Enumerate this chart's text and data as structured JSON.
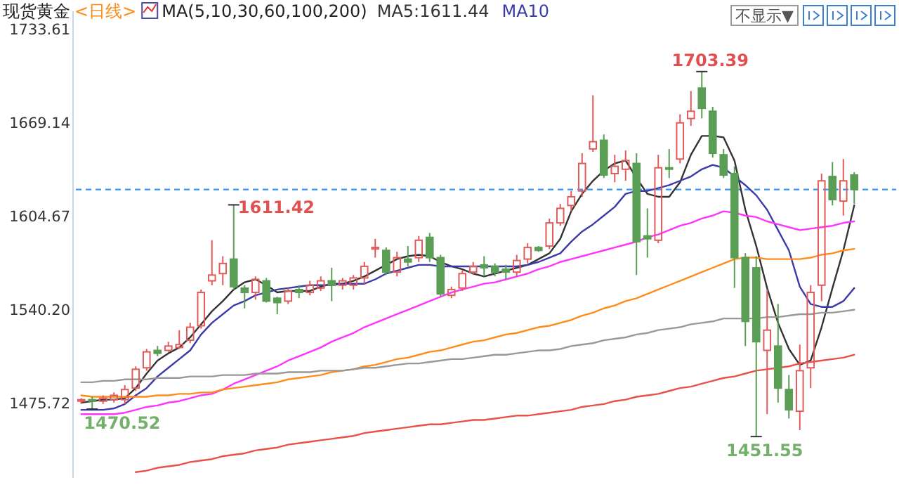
{
  "chart_data": {
    "type": "candlestick",
    "title": "现货黄金",
    "subtitle": "<日线>",
    "legend_title": "MA(5,10,30,60,100,200)",
    "legend": "top left",
    "categories": [
      null,
      null,
      null,
      null,
      null,
      null,
      null,
      null,
      null,
      null,
      null,
      null,
      null,
      null,
      null,
      null,
      null,
      null,
      null,
      null,
      null,
      null,
      null,
      null,
      null,
      null,
      null,
      null,
      null,
      null,
      null,
      null,
      null,
      null,
      null,
      null,
      null,
      null,
      null,
      null,
      null,
      null,
      null,
      null,
      null,
      null,
      null,
      null,
      null,
      null,
      null,
      null,
      null,
      null,
      null,
      null,
      null,
      null,
      null,
      null,
      null,
      null,
      null,
      null,
      null,
      null,
      null,
      null,
      null,
      null,
      null,
      null
    ],
    "ohlc": [
      [
        1476,
        1478,
        1474,
        1477
      ],
      [
        1477,
        1479,
        1470.52,
        1476
      ],
      [
        1476,
        1480,
        1474,
        1478
      ],
      [
        1477,
        1482,
        1475,
        1480
      ],
      [
        1477,
        1487,
        1474,
        1484
      ],
      [
        1485,
        1500,
        1483,
        1498
      ],
      [
        1499,
        1512,
        1497,
        1510
      ],
      [
        1511,
        1514,
        1507,
        1509
      ],
      [
        1511,
        1517,
        1510,
        1514
      ],
      [
        1513,
        1525,
        1512,
        1515
      ],
      [
        1518,
        1530,
        1516,
        1527
      ],
      [
        1528,
        1553,
        1526,
        1551
      ],
      [
        1559,
        1587,
        1556,
        1563
      ],
      [
        1564,
        1576,
        1556,
        1571
      ],
      [
        1574,
        1611.42,
        1553,
        1555
      ],
      [
        1554,
        1556,
        1540,
        1551
      ],
      [
        1551,
        1562,
        1546,
        1560
      ],
      [
        1559,
        1561,
        1544,
        1545
      ],
      [
        1547,
        1548,
        1536,
        1544
      ],
      [
        1545,
        1554,
        1543,
        1552
      ],
      [
        1553,
        1556,
        1547,
        1551
      ],
      [
        1551,
        1559,
        1549,
        1556
      ],
      [
        1554,
        1562,
        1552,
        1559
      ],
      [
        1559,
        1568,
        1545,
        1556
      ],
      [
        1556,
        1561,
        1553,
        1559
      ],
      [
        1556,
        1563,
        1553,
        1561
      ],
      [
        1561,
        1572,
        1557,
        1569
      ],
      [
        1581,
        1588,
        1575,
        1582
      ],
      [
        1580,
        1582,
        1563,
        1565
      ],
      [
        1565,
        1579,
        1562,
        1575
      ],
      [
        1574,
        1583,
        1569,
        1572
      ],
      [
        1575,
        1590,
        1572,
        1587
      ],
      [
        1589,
        1592,
        1572,
        1575
      ],
      [
        1575,
        1577,
        1548,
        1550
      ],
      [
        1549,
        1555,
        1547,
        1553
      ],
      [
        1554,
        1566,
        1552,
        1564
      ],
      [
        1565,
        1572,
        1563,
        1569
      ],
      [
        1570,
        1576,
        1562,
        1568
      ],
      [
        1569,
        1571,
        1562,
        1565
      ],
      [
        1567,
        1570,
        1560,
        1565
      ],
      [
        1565,
        1577,
        1562,
        1573
      ],
      [
        1574,
        1585,
        1571,
        1582
      ],
      [
        1582,
        1583,
        1579,
        1580
      ],
      [
        1583,
        1602,
        1581,
        1599
      ],
      [
        1599,
        1612,
        1597,
        1609
      ],
      [
        1611,
        1621,
        1607,
        1617
      ],
      [
        1621,
        1647,
        1617,
        1640
      ],
      [
        1650,
        1687,
        1648,
        1655
      ],
      [
        1656,
        1660,
        1630,
        1632
      ],
      [
        1633,
        1646,
        1627,
        1638
      ],
      [
        1636,
        1649,
        1628,
        1642
      ],
      [
        1640,
        1647,
        1563,
        1586
      ],
      [
        1590,
        1609,
        1575,
        1588
      ],
      [
        1587,
        1646,
        1585,
        1637
      ],
      [
        1637,
        1650,
        1630,
        1636
      ],
      [
        1643,
        1674,
        1640,
        1668
      ],
      [
        1671,
        1690,
        1666,
        1676
      ],
      [
        1692,
        1703.39,
        1671,
        1678
      ],
      [
        1676,
        1679,
        1644,
        1647
      ],
      [
        1646,
        1650,
        1630,
        1632
      ],
      [
        1633,
        1638,
        1554,
        1575
      ],
      [
        1575,
        1578,
        1514,
        1531
      ],
      [
        1568,
        1576,
        1451.55,
        1517
      ],
      [
        1511,
        1553,
        1467,
        1525
      ],
      [
        1514,
        1543,
        1475,
        1485
      ],
      [
        1484,
        1494,
        1464,
        1470
      ],
      [
        1469,
        1515,
        1456,
        1497
      ],
      [
        1499,
        1556,
        1485,
        1551
      ],
      [
        1556,
        1633,
        1545,
        1628
      ],
      [
        1631,
        1641,
        1611,
        1615
      ],
      [
        1614,
        1643,
        1604,
        1628
      ],
      [
        1632,
        1634,
        1612,
        1622
      ]
    ],
    "series": [
      {
        "name": "MA5:1611.44",
        "type": "line",
        "color": "#333333",
        "values": [
          1475,
          1476,
          1477,
          1477,
          1478,
          1485,
          1495,
          1504,
          1509,
          1513,
          1520,
          1529,
          1538,
          1545,
          1553,
          1558,
          1560,
          1556,
          1551,
          1552,
          1552,
          1552,
          1555,
          1557,
          1557,
          1559,
          1562,
          1566,
          1570,
          1574,
          1576,
          1577,
          1576,
          1572,
          1569,
          1567,
          1564,
          1562,
          1564,
          1566,
          1568,
          1570,
          1574,
          1578,
          1588,
          1607,
          1619,
          1628,
          1635,
          1640,
          1642,
          1630,
          1619,
          1617,
          1617,
          1627,
          1646,
          1659,
          1659,
          1658,
          1642,
          1608,
          1583,
          1554,
          1530,
          1512,
          1501,
          1504,
          1527,
          1554,
          1580,
          1611
        ]
      },
      {
        "name": "MA10",
        "type": "line",
        "color": "#3a3aa8",
        "values": [
          1470,
          1470,
          1470,
          1471,
          1474,
          1480,
          1485,
          1493,
          1499,
          1505,
          1511,
          1522,
          1530,
          1536,
          1542,
          1545,
          1549,
          1551,
          1553,
          1554,
          1555,
          1556,
          1556,
          1556,
          1557,
          1557,
          1557,
          1560,
          1564,
          1566,
          1568,
          1570,
          1570,
          1569,
          1569,
          1569,
          1569,
          1569,
          1569,
          1569,
          1569,
          1570,
          1572,
          1575,
          1578,
          1586,
          1593,
          1598,
          1604,
          1610,
          1619,
          1621,
          1621,
          1623,
          1625,
          1628,
          1631,
          1636,
          1639,
          1637,
          1631,
          1625,
          1618,
          1608,
          1594,
          1580,
          1555,
          1543,
          1541,
          1541,
          1545,
          1554
        ]
      },
      {
        "type": "line",
        "color": "#ff33ff",
        "values": [
          1467,
          1467,
          1467,
          1467,
          1468,
          1470,
          1472,
          1473,
          1475,
          1476,
          1478,
          1480,
          1481,
          1484,
          1488,
          1491,
          1494,
          1497,
          1500,
          1504,
          1507,
          1510,
          1513,
          1517,
          1520,
          1523,
          1527,
          1530,
          1533,
          1536,
          1539,
          1542,
          1545,
          1548,
          1551,
          1553,
          1555,
          1557,
          1558,
          1560,
          1562,
          1564,
          1567,
          1569,
          1572,
          1574,
          1576,
          1578,
          1580,
          1582,
          1584,
          1586,
          1589,
          1591,
          1594,
          1597,
          1599,
          1602,
          1604,
          1607,
          1606,
          1604,
          1603,
          1600,
          1598,
          1596,
          1594,
          1595,
          1596,
          1597,
          1599,
          1600
        ]
      },
      {
        "type": "line",
        "color": "#ff8c1a",
        "values": [
          1480,
          1479,
          1479,
          1479,
          1479,
          1479,
          1479,
          1480,
          1480,
          1481,
          1481,
          1482,
          1482,
          1484,
          1485,
          1486,
          1487,
          1488,
          1489,
          1491,
          1492,
          1493,
          1494,
          1496,
          1497,
          1498,
          1500,
          1501,
          1503,
          1505,
          1506,
          1508,
          1510,
          1511,
          1513,
          1515,
          1517,
          1518,
          1520,
          1522,
          1523,
          1525,
          1527,
          1528,
          1530,
          1532,
          1535,
          1537,
          1540,
          1542,
          1545,
          1547,
          1550,
          1553,
          1556,
          1559,
          1562,
          1565,
          1568,
          1571,
          1574,
          1575,
          1575,
          1574,
          1574,
          1574,
          1574,
          1575,
          1577,
          1578,
          1580,
          1581
        ]
      },
      {
        "type": "line",
        "color": "#999999",
        "values": [
          1489,
          1489,
          1490,
          1490,
          1491,
          1491,
          1491,
          1492,
          1492,
          1492,
          1493,
          1493,
          1493,
          1494,
          1494,
          1494,
          1495,
          1495,
          1495,
          1496,
          1496,
          1496,
          1497,
          1497,
          1497,
          1498,
          1499,
          1499,
          1500,
          1501,
          1502,
          1502,
          1503,
          1504,
          1505,
          1505,
          1506,
          1507,
          1508,
          1508,
          1509,
          1510,
          1511,
          1511,
          1512,
          1514,
          1515,
          1516,
          1518,
          1519,
          1520,
          1522,
          1523,
          1525,
          1526,
          1527,
          1529,
          1530,
          1531,
          1533,
          1533,
          1533,
          1533,
          1534,
          1534,
          1535,
          1536,
          1536,
          1537,
          1537,
          1538,
          1539
        ]
      },
      {
        "type": "line",
        "color": "#e8504a",
        "values": [
          null,
          null,
          null,
          null,
          null,
          1427,
          1428,
          1430,
          1431,
          1432,
          1434,
          1435,
          1436,
          1438,
          1439,
          1440,
          1442,
          1443,
          1444,
          1446,
          1447,
          1448,
          1449,
          1450,
          1451,
          1452,
          1454,
          1455,
          1456,
          1457,
          1458,
          1459,
          1460,
          1460,
          1461,
          1462,
          1463,
          1463,
          1464,
          1465,
          1466,
          1466,
          1467,
          1468,
          1469,
          1470,
          1472,
          1473,
          1474,
          1476,
          1477,
          1479,
          1480,
          1481,
          1483,
          1485,
          1486,
          1488,
          1490,
          1492,
          1493,
          1495,
          1497,
          1498,
          1499,
          1500,
          1502,
          1503,
          1504,
          1505,
          1506,
          1508
        ]
      }
    ],
    "ylim": [
      1423,
      1745
    ],
    "yticks": [
      1475.72,
      {
        "value": 1540.2,
        "label": "1540.20"
      },
      1604.67,
      1669.14,
      1733.61
    ],
    "tick_labels": "y",
    "ref_lines": [
      {
        "axis": "y",
        "value": 1622,
        "color": "#3399ff",
        "line_style": "dashed"
      }
    ],
    "annotations": [
      "1611.42",
      "1703.39",
      "1470.52",
      "1451.55",
      "不显示▼"
    ]
  }
}
